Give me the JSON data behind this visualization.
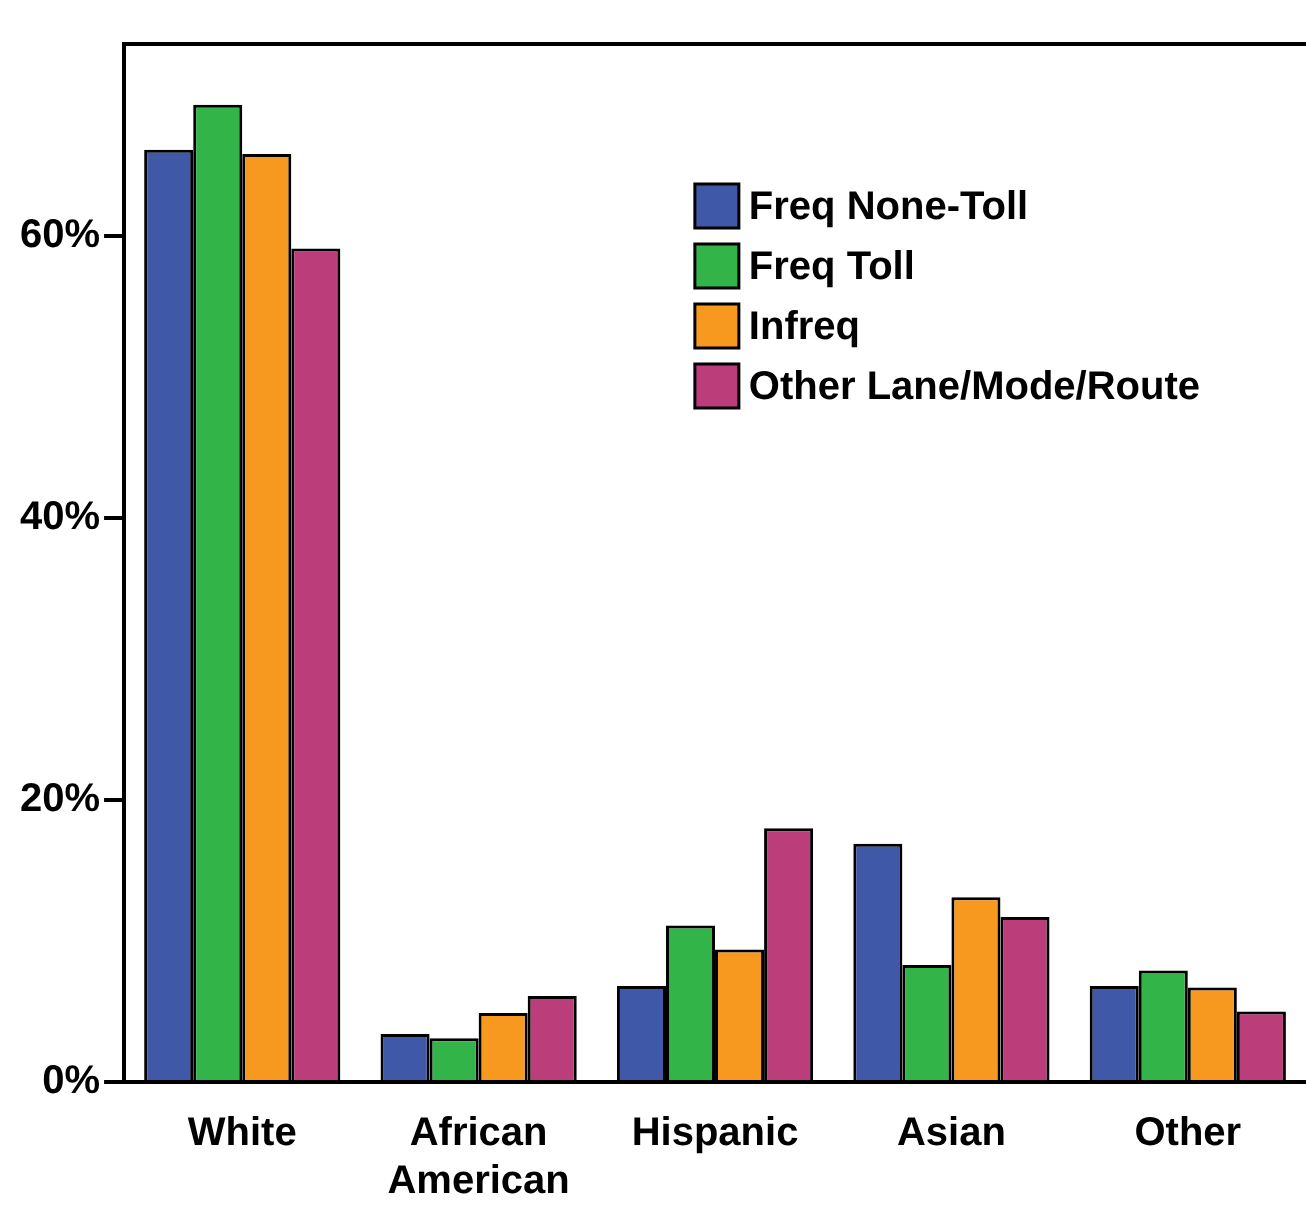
{
  "chart_data": {
    "type": "bar",
    "categories": [
      "White",
      "African American",
      "Hispanic",
      "Asian",
      "Other"
    ],
    "series": [
      {
        "name": "Freq None-Toll",
        "color": "#3f58a8",
        "values": [
          66.1,
          3.4,
          6.8,
          16.9,
          6.8
        ]
      },
      {
        "name": "Freq Toll",
        "color": "#33b449",
        "values": [
          69.3,
          3.1,
          11.1,
          8.3,
          7.9
        ]
      },
      {
        "name": "Infreq",
        "color": "#f7991f",
        "values": [
          65.8,
          4.9,
          9.4,
          13.1,
          6.7
        ]
      },
      {
        "name": "Other Lane/Mode/Route",
        "color": "#bb3d7a",
        "values": [
          59.1,
          6.1,
          18.0,
          11.7,
          5.0
        ]
      }
    ],
    "ylim": [
      0,
      73.6
    ],
    "yticks": [
      {
        "value": 0,
        "label": "0%"
      },
      {
        "value": 20,
        "label": "20%"
      },
      {
        "value": 40,
        "label": "40%"
      },
      {
        "value": 60,
        "label": "60%"
      }
    ],
    "grid": false,
    "legend": "top right"
  }
}
